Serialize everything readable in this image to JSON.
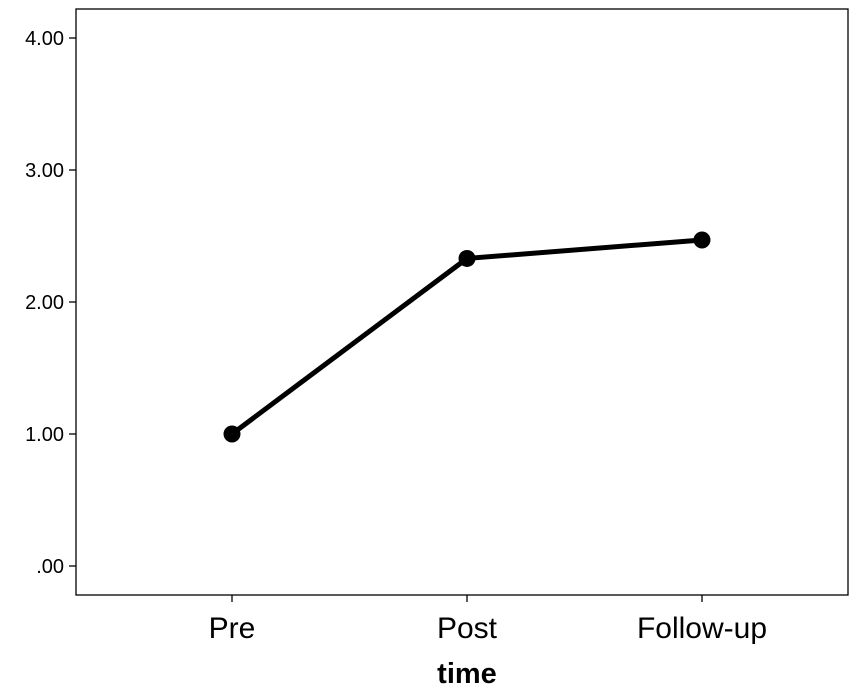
{
  "chart_data": {
    "type": "line",
    "categories": [
      "Pre",
      "Post",
      "Follow-up"
    ],
    "series": [
      {
        "values": [
          1.0,
          2.33,
          2.47
        ]
      }
    ],
    "xlabel": "time",
    "ylabel": "",
    "ylim": [
      0,
      4
    ],
    "yticks": [
      ".00",
      "1.00",
      "2.00",
      "3.00",
      "4.00"
    ],
    "grid": false,
    "legend": "none",
    "line_color": "#000000",
    "marker": "filled-circle"
  }
}
